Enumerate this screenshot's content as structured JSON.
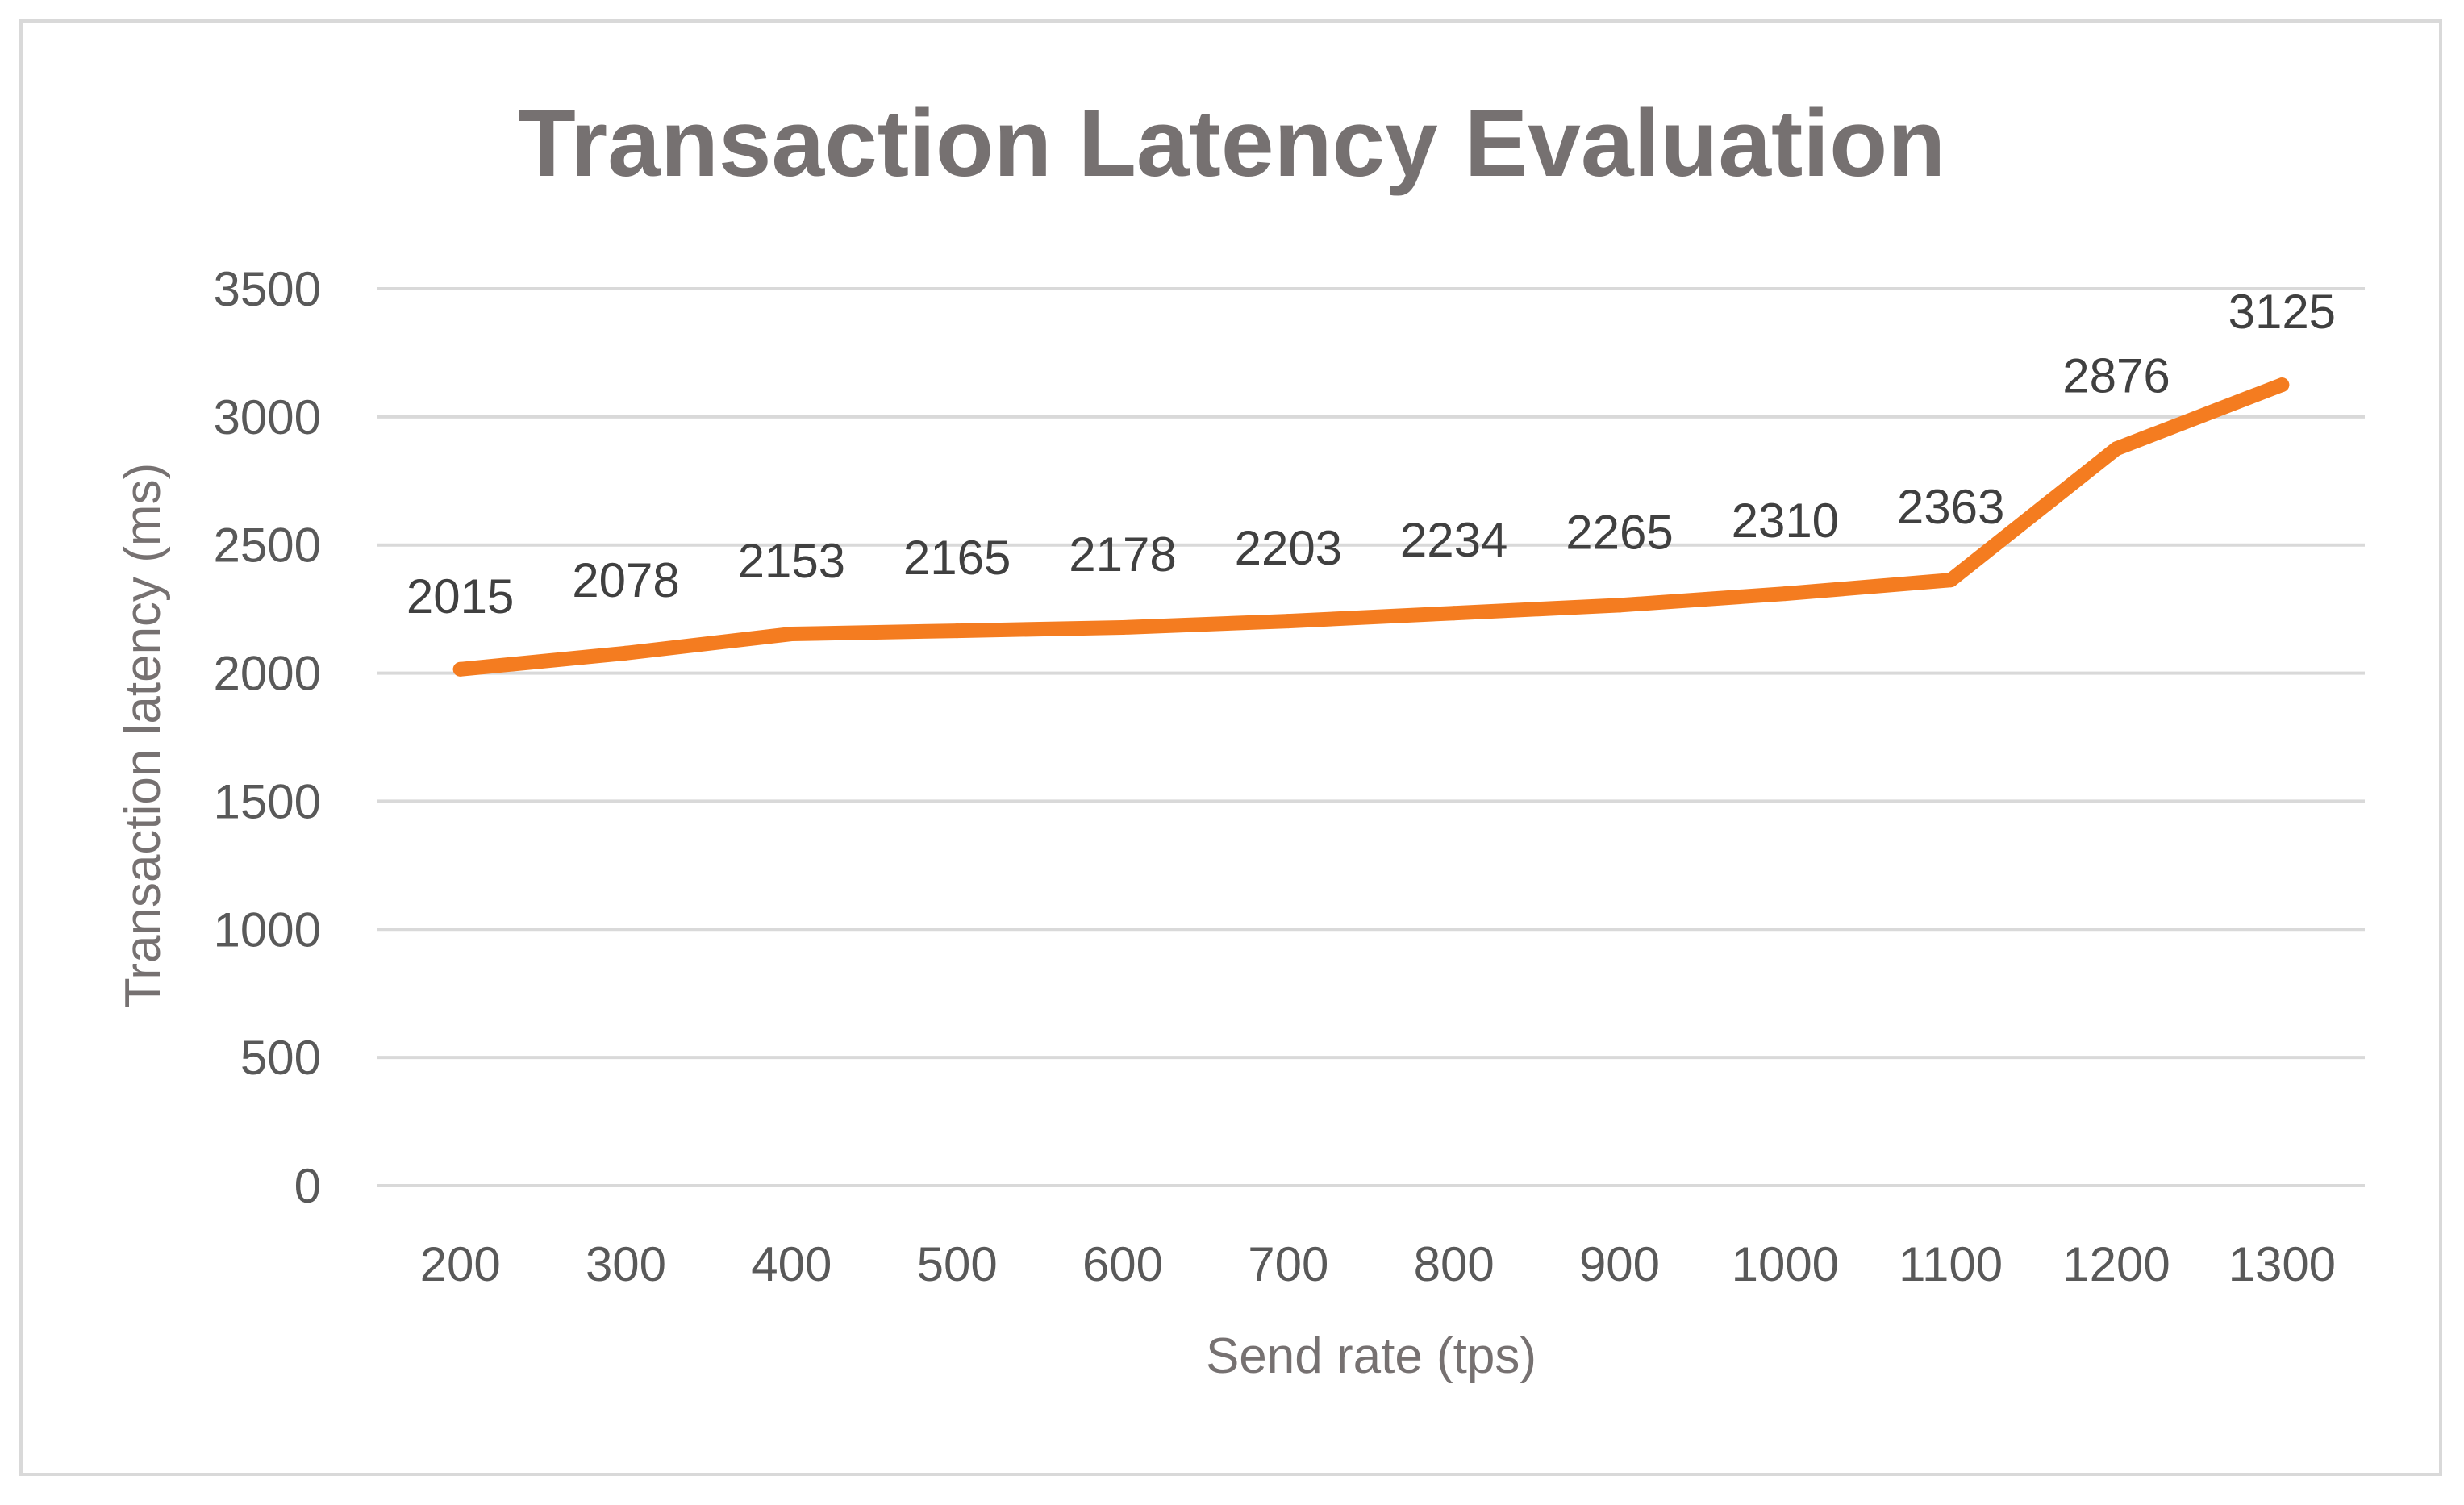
{
  "chart_data": {
    "type": "line",
    "title": "Transaction Latency Evaluation",
    "xlabel": "Send rate (tps)",
    "ylabel": "Transaction latency (ms)",
    "categories": [
      "200",
      "300",
      "400",
      "500",
      "600",
      "700",
      "800",
      "900",
      "1000",
      "1100",
      "1200",
      "1300"
    ],
    "series": [
      {
        "values": [
          2015,
          2078,
          2153,
          2165,
          2178,
          2203,
          2234,
          2265,
          2310,
          2363,
          2876,
          3125
        ],
        "color": "#f47c20"
      }
    ],
    "ylim": [
      0,
      3500
    ],
    "yticks": [
      "0",
      "500",
      "1000",
      "1500",
      "2000",
      "2500",
      "3000",
      "3500"
    ],
    "grid": true,
    "legend": "none",
    "data_labels": true
  }
}
